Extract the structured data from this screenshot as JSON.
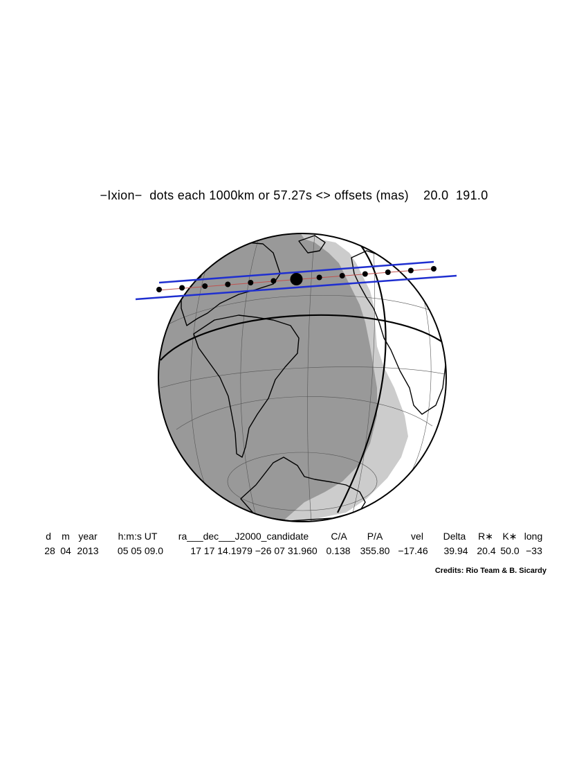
{
  "title": "−Ixion−  dots each 1000km or 57.27s <> offsets (mas)    20.0  191.0",
  "table": {
    "headers": [
      "d",
      "m",
      "year",
      "h:m:s UT",
      "ra___dec___J2000_candidate",
      "C/A",
      "P/A",
      "vel",
      "Delta",
      "R∗",
      "K∗",
      "long"
    ],
    "values": [
      "28",
      "04",
      "2013",
      "05 05 09.0",
      "17 17 14.1979 −26 07 31.960",
      "0.138",
      "355.80",
      "−17.46",
      "39.94",
      "20.4",
      "50.0",
      "−33"
    ]
  },
  "credits": "Credits: Rio Team & B. Sicardy",
  "colors": {
    "night": "#999999",
    "twilight": "#cccccc",
    "day": "#ffffff",
    "shadow_limits": "#1f2fd0",
    "centerline": "#c0504d",
    "dots": "#000000"
  },
  "map": {
    "projection": "orthographic globe",
    "track_dots": 13,
    "closest_approach_dot_index": 6
  }
}
